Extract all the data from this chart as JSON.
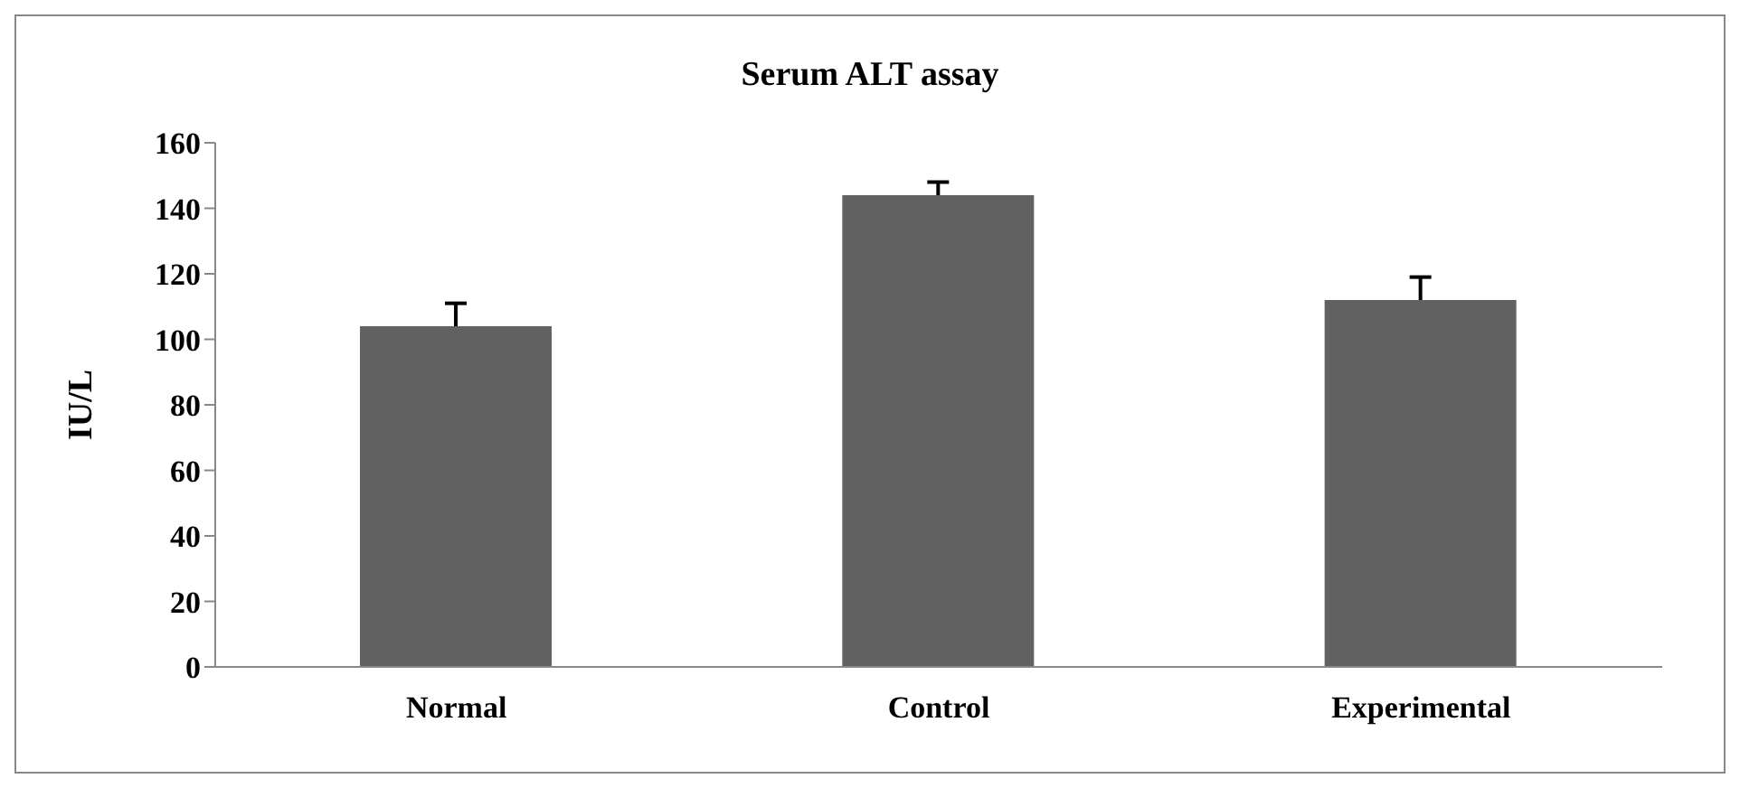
{
  "chart_data": {
    "type": "bar",
    "title": "Serum ALT assay",
    "ylabel": "IU/L",
    "categories": [
      "Normal",
      "Control",
      "Experimental"
    ],
    "values": [
      104,
      144,
      112
    ],
    "errors": [
      [
        104,
        111
      ],
      [
        144,
        148
      ],
      [
        112,
        119
      ]
    ],
    "color": "#616161",
    "ylim": [
      0,
      160
    ],
    "yticks": [
      0,
      20,
      40,
      60,
      80,
      100,
      120,
      140,
      160
    ],
    "grid": false,
    "legend": false
  }
}
